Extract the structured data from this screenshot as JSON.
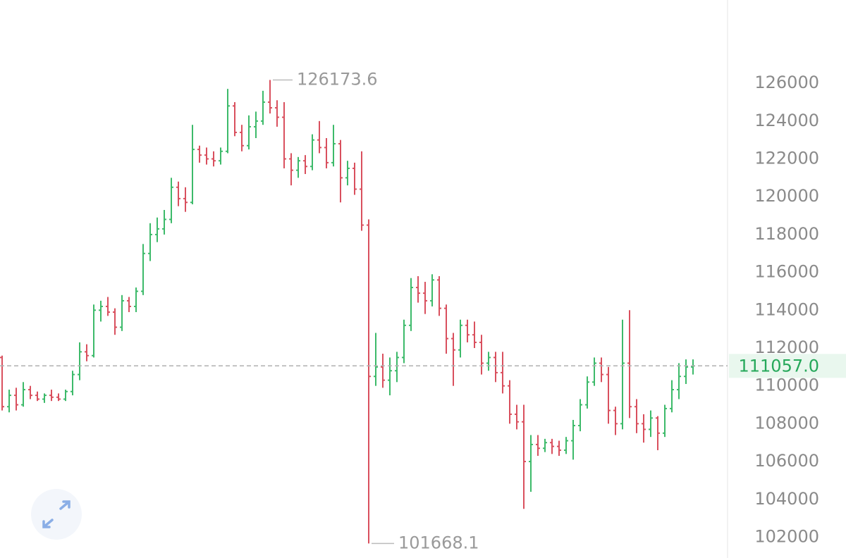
{
  "chart_data": {
    "type": "ohlc",
    "open": [
      111500,
      108900,
      109500,
      109000,
      109800,
      109500,
      109300,
      109500,
      109400,
      109300,
      109700,
      110600,
      111800,
      111600,
      114000,
      114200,
      113900,
      113100,
      114500,
      114200,
      115000,
      117000,
      118000,
      118300,
      118800,
      120500,
      119900,
      119700,
      122500,
      122200,
      122000,
      121900,
      122400,
      124800,
      123400,
      122700,
      123700,
      124000,
      125000,
      124700,
      124200,
      122000,
      121400,
      121900,
      121600,
      123000,
      122600,
      121800,
      122800,
      121000,
      121500,
      120400,
      118500,
      110500,
      111000,
      110300,
      110800,
      111500,
      113200,
      115200,
      114900,
      114500,
      115600,
      114100,
      112500,
      111900,
      113200,
      112700,
      112300,
      111200,
      111500,
      110700,
      110000,
      108500,
      108100,
      106000,
      106900,
      106700,
      107000,
      106800,
      106600,
      107100,
      107900,
      109000,
      110200,
      111200,
      110600,
      108700,
      108000,
      111200,
      108900,
      108000,
      107700,
      108300,
      107500,
      108800,
      109800,
      110500,
      111000
    ],
    "high": [
      111600,
      109800,
      109900,
      110200,
      110000,
      109700,
      109600,
      109800,
      109600,
      109800,
      110800,
      112300,
      112200,
      114300,
      114500,
      114700,
      114100,
      114800,
      114700,
      115200,
      117500,
      118600,
      118900,
      119300,
      121000,
      120800,
      120500,
      123800,
      122700,
      122600,
      122400,
      122600,
      125700,
      125000,
      123800,
      124300,
      124500,
      125600,
      126173.6,
      125100,
      125000,
      122300,
      122100,
      122200,
      123300,
      124000,
      123100,
      123800,
      123000,
      121900,
      121800,
      122400,
      118800,
      112800,
      111700,
      111500,
      111800,
      113500,
      115700,
      115800,
      115500,
      115900,
      115800,
      114300,
      112800,
      113500,
      113500,
      113400,
      112700,
      111800,
      111800,
      111800,
      110300,
      109000,
      109000,
      107400,
      107400,
      107200,
      107200,
      107100,
      107300,
      108200,
      109300,
      110500,
      111500,
      111500,
      111000,
      108900,
      113500,
      114000,
      109300,
      108500,
      108700,
      108400,
      109000,
      110300,
      111200,
      111400,
      111400
    ],
    "low": [
      108700,
      108600,
      108700,
      108900,
      109300,
      109200,
      109100,
      109200,
      109200,
      109200,
      109500,
      110300,
      111300,
      111500,
      113400,
      113700,
      112700,
      112900,
      113900,
      113900,
      114800,
      116600,
      117600,
      118000,
      118600,
      119500,
      119200,
      119600,
      121800,
      121700,
      121600,
      121700,
      122300,
      123200,
      122400,
      122500,
      123100,
      123800,
      124400,
      123700,
      121500,
      120600,
      121000,
      121200,
      121400,
      122300,
      121500,
      121600,
      119700,
      120600,
      120100,
      118200,
      101668.1,
      110000,
      109900,
      109500,
      110200,
      111200,
      112900,
      114400,
      113800,
      114200,
      113700,
      111700,
      110000,
      111500,
      112300,
      112000,
      110600,
      110800,
      110200,
      109600,
      108000,
      107700,
      103500,
      104400,
      106300,
      106500,
      106400,
      106300,
      106400,
      106100,
      107600,
      108800,
      110000,
      110200,
      108000,
      107400,
      107700,
      108300,
      107500,
      107000,
      107300,
      106600,
      107300,
      108600,
      109300,
      110100,
      110600
    ],
    "close": [
      108900,
      109500,
      109000,
      109800,
      109500,
      109300,
      109500,
      109400,
      109300,
      109700,
      110600,
      111800,
      111600,
      114000,
      114200,
      113900,
      113100,
      114500,
      114200,
      115000,
      117000,
      118000,
      118300,
      118800,
      120500,
      119900,
      119700,
      122500,
      122200,
      122000,
      121900,
      122400,
      124800,
      123400,
      122700,
      123700,
      124000,
      125000,
      124700,
      124200,
      122000,
      121400,
      121900,
      121600,
      123000,
      122600,
      121800,
      122800,
      121000,
      121500,
      120400,
      118500,
      110500,
      111000,
      110300,
      110800,
      111500,
      113200,
      115200,
      114900,
      114500,
      115600,
      114100,
      112500,
      111900,
      113200,
      112700,
      112300,
      111200,
      111500,
      110700,
      110000,
      108500,
      108100,
      106000,
      106900,
      106700,
      107000,
      106800,
      106600,
      107100,
      107900,
      109000,
      110200,
      111200,
      110600,
      108700,
      108000,
      111200,
      108900,
      108000,
      107700,
      108300,
      107500,
      108800,
      109800,
      110500,
      111000,
      111057
    ],
    "up_color": "#3dba6a",
    "down_color": "#d9505e",
    "last_price": {
      "value": 111057,
      "label": "111057.0"
    },
    "ylim": [
      100900,
      130400
    ],
    "yticks": [
      102000,
      104000,
      106000,
      108000,
      110000,
      112000,
      114000,
      116000,
      118000,
      120000,
      122000,
      124000,
      126000
    ]
  }
}
